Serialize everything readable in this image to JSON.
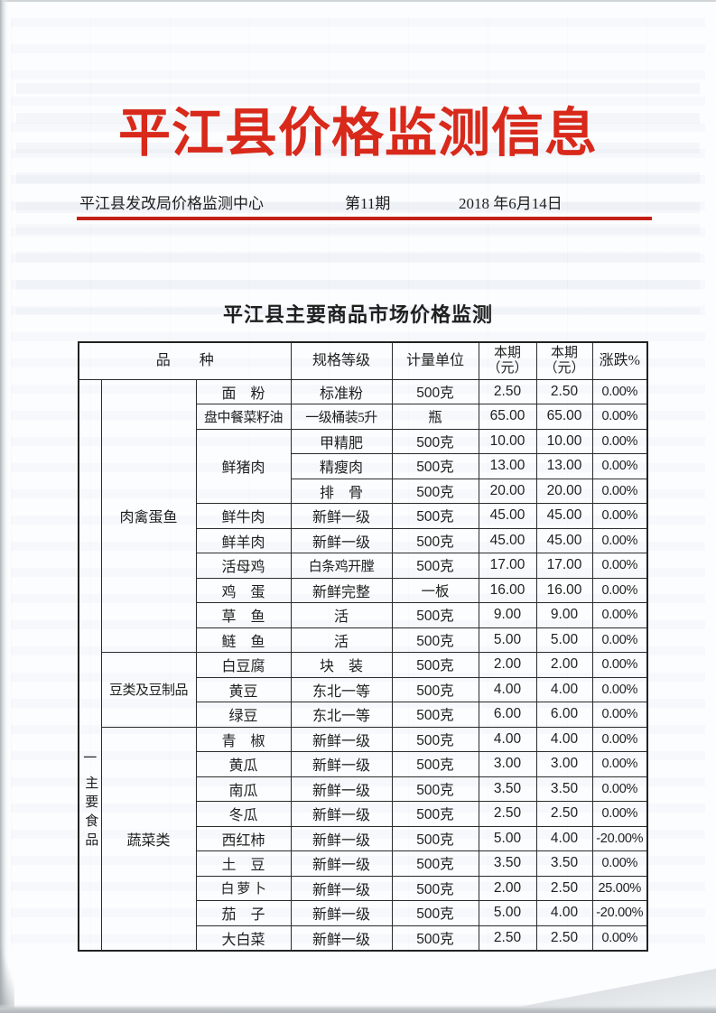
{
  "document": {
    "title": "平江县价格监测信息",
    "issuer": "平江县发改局价格监测中心",
    "issue_number": "第11期",
    "date": "2018 年6月14日",
    "section_title": "平江县主要商品市场价格监测"
  },
  "colors": {
    "title_red": "#d8291b",
    "rule_red": "#c32016",
    "ink": "#1f1f1f",
    "paper": "#fcfdfe"
  },
  "table": {
    "headers": {
      "variety": "品　　种",
      "spec": "规格等级",
      "unit": "计量单位",
      "price_current_a": "本期\n（元）",
      "price_current_b": "本期\n（元）",
      "change": "涨跌%"
    },
    "group_label": {
      "top": "一",
      "bottom": "主要食品"
    },
    "sections": [
      {
        "category": "肉禽蛋鱼",
        "rows": [
          {
            "name": "面　粉",
            "spec": "标准粉",
            "unit": "500克",
            "p1": "2.50",
            "p2": "2.50",
            "chg": "0.00%"
          },
          {
            "name": "盘中餐菜籽油",
            "spec": "一级桶装5升",
            "unit": "瓶",
            "p1": "65.00",
            "p2": "65.00",
            "chg": "0.00%"
          },
          {
            "name": "鲜猪肉",
            "rowspan": 3,
            "spec": "甲精肥",
            "unit": "500克",
            "p1": "10.00",
            "p2": "10.00",
            "chg": "0.00%"
          },
          {
            "spec": "精瘦肉",
            "unit": "500克",
            "p1": "13.00",
            "p2": "13.00",
            "chg": "0.00%"
          },
          {
            "spec": "排　骨",
            "unit": "500克",
            "p1": "20.00",
            "p2": "20.00",
            "chg": "0.00%"
          },
          {
            "name": "鲜牛肉",
            "spec": "新鲜一级",
            "unit": "500克",
            "p1": "45.00",
            "p2": "45.00",
            "chg": "0.00%"
          },
          {
            "name": "鲜羊肉",
            "spec": "新鲜一级",
            "unit": "500克",
            "p1": "45.00",
            "p2": "45.00",
            "chg": "0.00%"
          },
          {
            "name": "活母鸡",
            "spec": "白条鸡开膛",
            "unit": "500克",
            "p1": "17.00",
            "p2": "17.00",
            "chg": "0.00%"
          },
          {
            "name": "鸡　蛋",
            "spec": "新鲜完整",
            "unit": "一板",
            "p1": "16.00",
            "p2": "16.00",
            "chg": "0.00%"
          },
          {
            "name": "草　鱼",
            "spec": "活",
            "unit": "500克",
            "p1": "9.00",
            "p2": "9.00",
            "chg": "0.00%"
          },
          {
            "name": "鲢　鱼",
            "spec": "活",
            "unit": "500克",
            "p1": "5.00",
            "p2": "5.00",
            "chg": "0.00%"
          }
        ]
      },
      {
        "category": "豆类及豆制品",
        "rows": [
          {
            "name": "白豆腐",
            "spec": "块　装",
            "unit": "500克",
            "p1": "2.00",
            "p2": "2.00",
            "chg": "0.00%"
          },
          {
            "name": "黄豆",
            "spec": "东北一等",
            "unit": "500克",
            "p1": "4.00",
            "p2": "4.00",
            "chg": "0.00%"
          },
          {
            "name": "绿豆",
            "spec": "东北一等",
            "unit": "500克",
            "p1": "6.00",
            "p2": "6.00",
            "chg": "0.00%"
          }
        ]
      },
      {
        "category": "蔬菜类",
        "rows": [
          {
            "name": "青　椒",
            "spec": "新鲜一级",
            "unit": "500克",
            "p1": "4.00",
            "p2": "4.00",
            "chg": "0.00%"
          },
          {
            "name": "黄瓜",
            "spec": "新鲜一级",
            "unit": "500克",
            "p1": "3.00",
            "p2": "3.00",
            "chg": "0.00%"
          },
          {
            "name": "南瓜",
            "spec": "新鲜一级",
            "unit": "500克",
            "p1": "3.50",
            "p2": "3.50",
            "chg": "0.00%"
          },
          {
            "name": "冬瓜",
            "spec": "新鲜一级",
            "unit": "500克",
            "p1": "2.50",
            "p2": "2.50",
            "chg": "0.00%"
          },
          {
            "name": "西红柿",
            "spec": "新鲜一级",
            "unit": "500克",
            "p1": "5.00",
            "p2": "4.00",
            "chg": "-20.00%"
          },
          {
            "name": "土　豆",
            "spec": "新鲜一级",
            "unit": "500克",
            "p1": "3.50",
            "p2": "3.50",
            "chg": "0.00%"
          },
          {
            "name": "白 萝 卜",
            "spec": "新鲜一级",
            "unit": "500克",
            "p1": "2.00",
            "p2": "2.50",
            "chg": "25.00%"
          },
          {
            "name": "茄　子",
            "spec": "新鲜一级",
            "unit": "500克",
            "p1": "5.00",
            "p2": "4.00",
            "chg": "-20.00%"
          },
          {
            "name": "大白菜",
            "spec": "新鲜一级",
            "unit": "500克",
            "p1": "2.50",
            "p2": "2.50",
            "chg": "0.00%"
          }
        ]
      }
    ]
  }
}
